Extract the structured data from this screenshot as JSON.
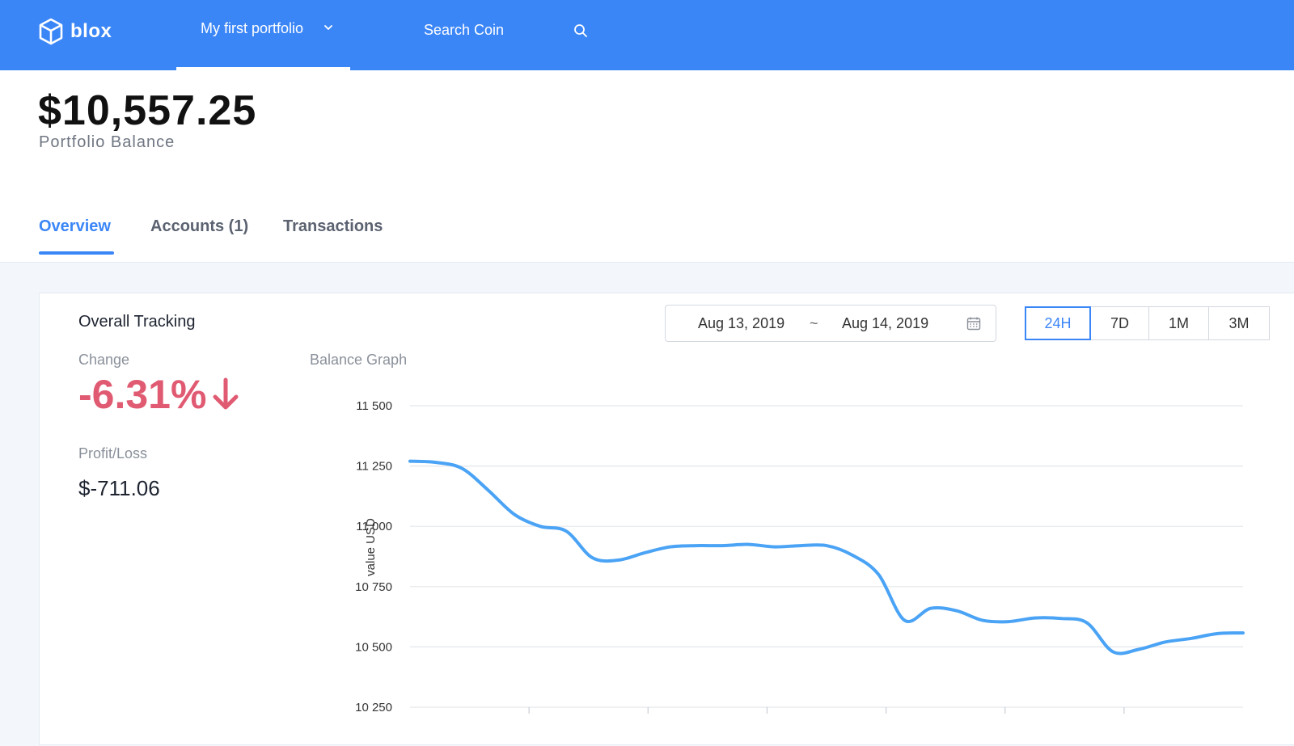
{
  "app": {
    "logo_text": "blox"
  },
  "nav": {
    "portfolio_label": "My first portfolio",
    "search_label": "Search Coin"
  },
  "portfolio": {
    "balance": "$10,557.25",
    "balance_label": "Portfolio Balance"
  },
  "tabs": [
    {
      "label": "Overview",
      "active": true
    },
    {
      "label": "Accounts (1)",
      "active": false
    },
    {
      "label": "Transactions",
      "active": false
    }
  ],
  "tracking": {
    "title": "Overall Tracking",
    "change_label": "Change",
    "change_value": "-6.31%",
    "profit_loss_label": "Profit/Loss",
    "profit_loss_value": "$-711.06",
    "graph_label": "Balance Graph"
  },
  "date_range": {
    "from": "Aug 13, 2019",
    "separator": "~",
    "to": "Aug 14, 2019"
  },
  "range_buttons": [
    {
      "label": "24H",
      "active": true
    },
    {
      "label": "7D",
      "active": false
    },
    {
      "label": "1M",
      "active": false
    },
    {
      "label": "3M",
      "active": false
    }
  ],
  "colors": {
    "brand": "#3b86f7",
    "negative": "#e05a72",
    "line": "#4aa3f5"
  },
  "chart_data": {
    "type": "line",
    "ylabel": "value USD",
    "ylim": [
      10250,
      11500
    ],
    "yticks": [
      11500,
      11250,
      11000,
      10750,
      10500,
      10250
    ],
    "ytick_labels": [
      "11 500",
      "11 250",
      "11 000",
      "10 750",
      "10 500",
      "10 250"
    ],
    "grid": true,
    "series": [
      {
        "values": [
          11270,
          11265,
          11240,
          11150,
          11050,
          11000,
          10980,
          10870,
          10860,
          10890,
          10915,
          10920,
          10920,
          10925,
          10915,
          10920,
          10920,
          10880,
          10800,
          10610,
          10660,
          10650,
          10610,
          10605,
          10620,
          10618,
          10600,
          10480,
          10490,
          10520,
          10535,
          10555,
          10558
        ]
      }
    ]
  }
}
